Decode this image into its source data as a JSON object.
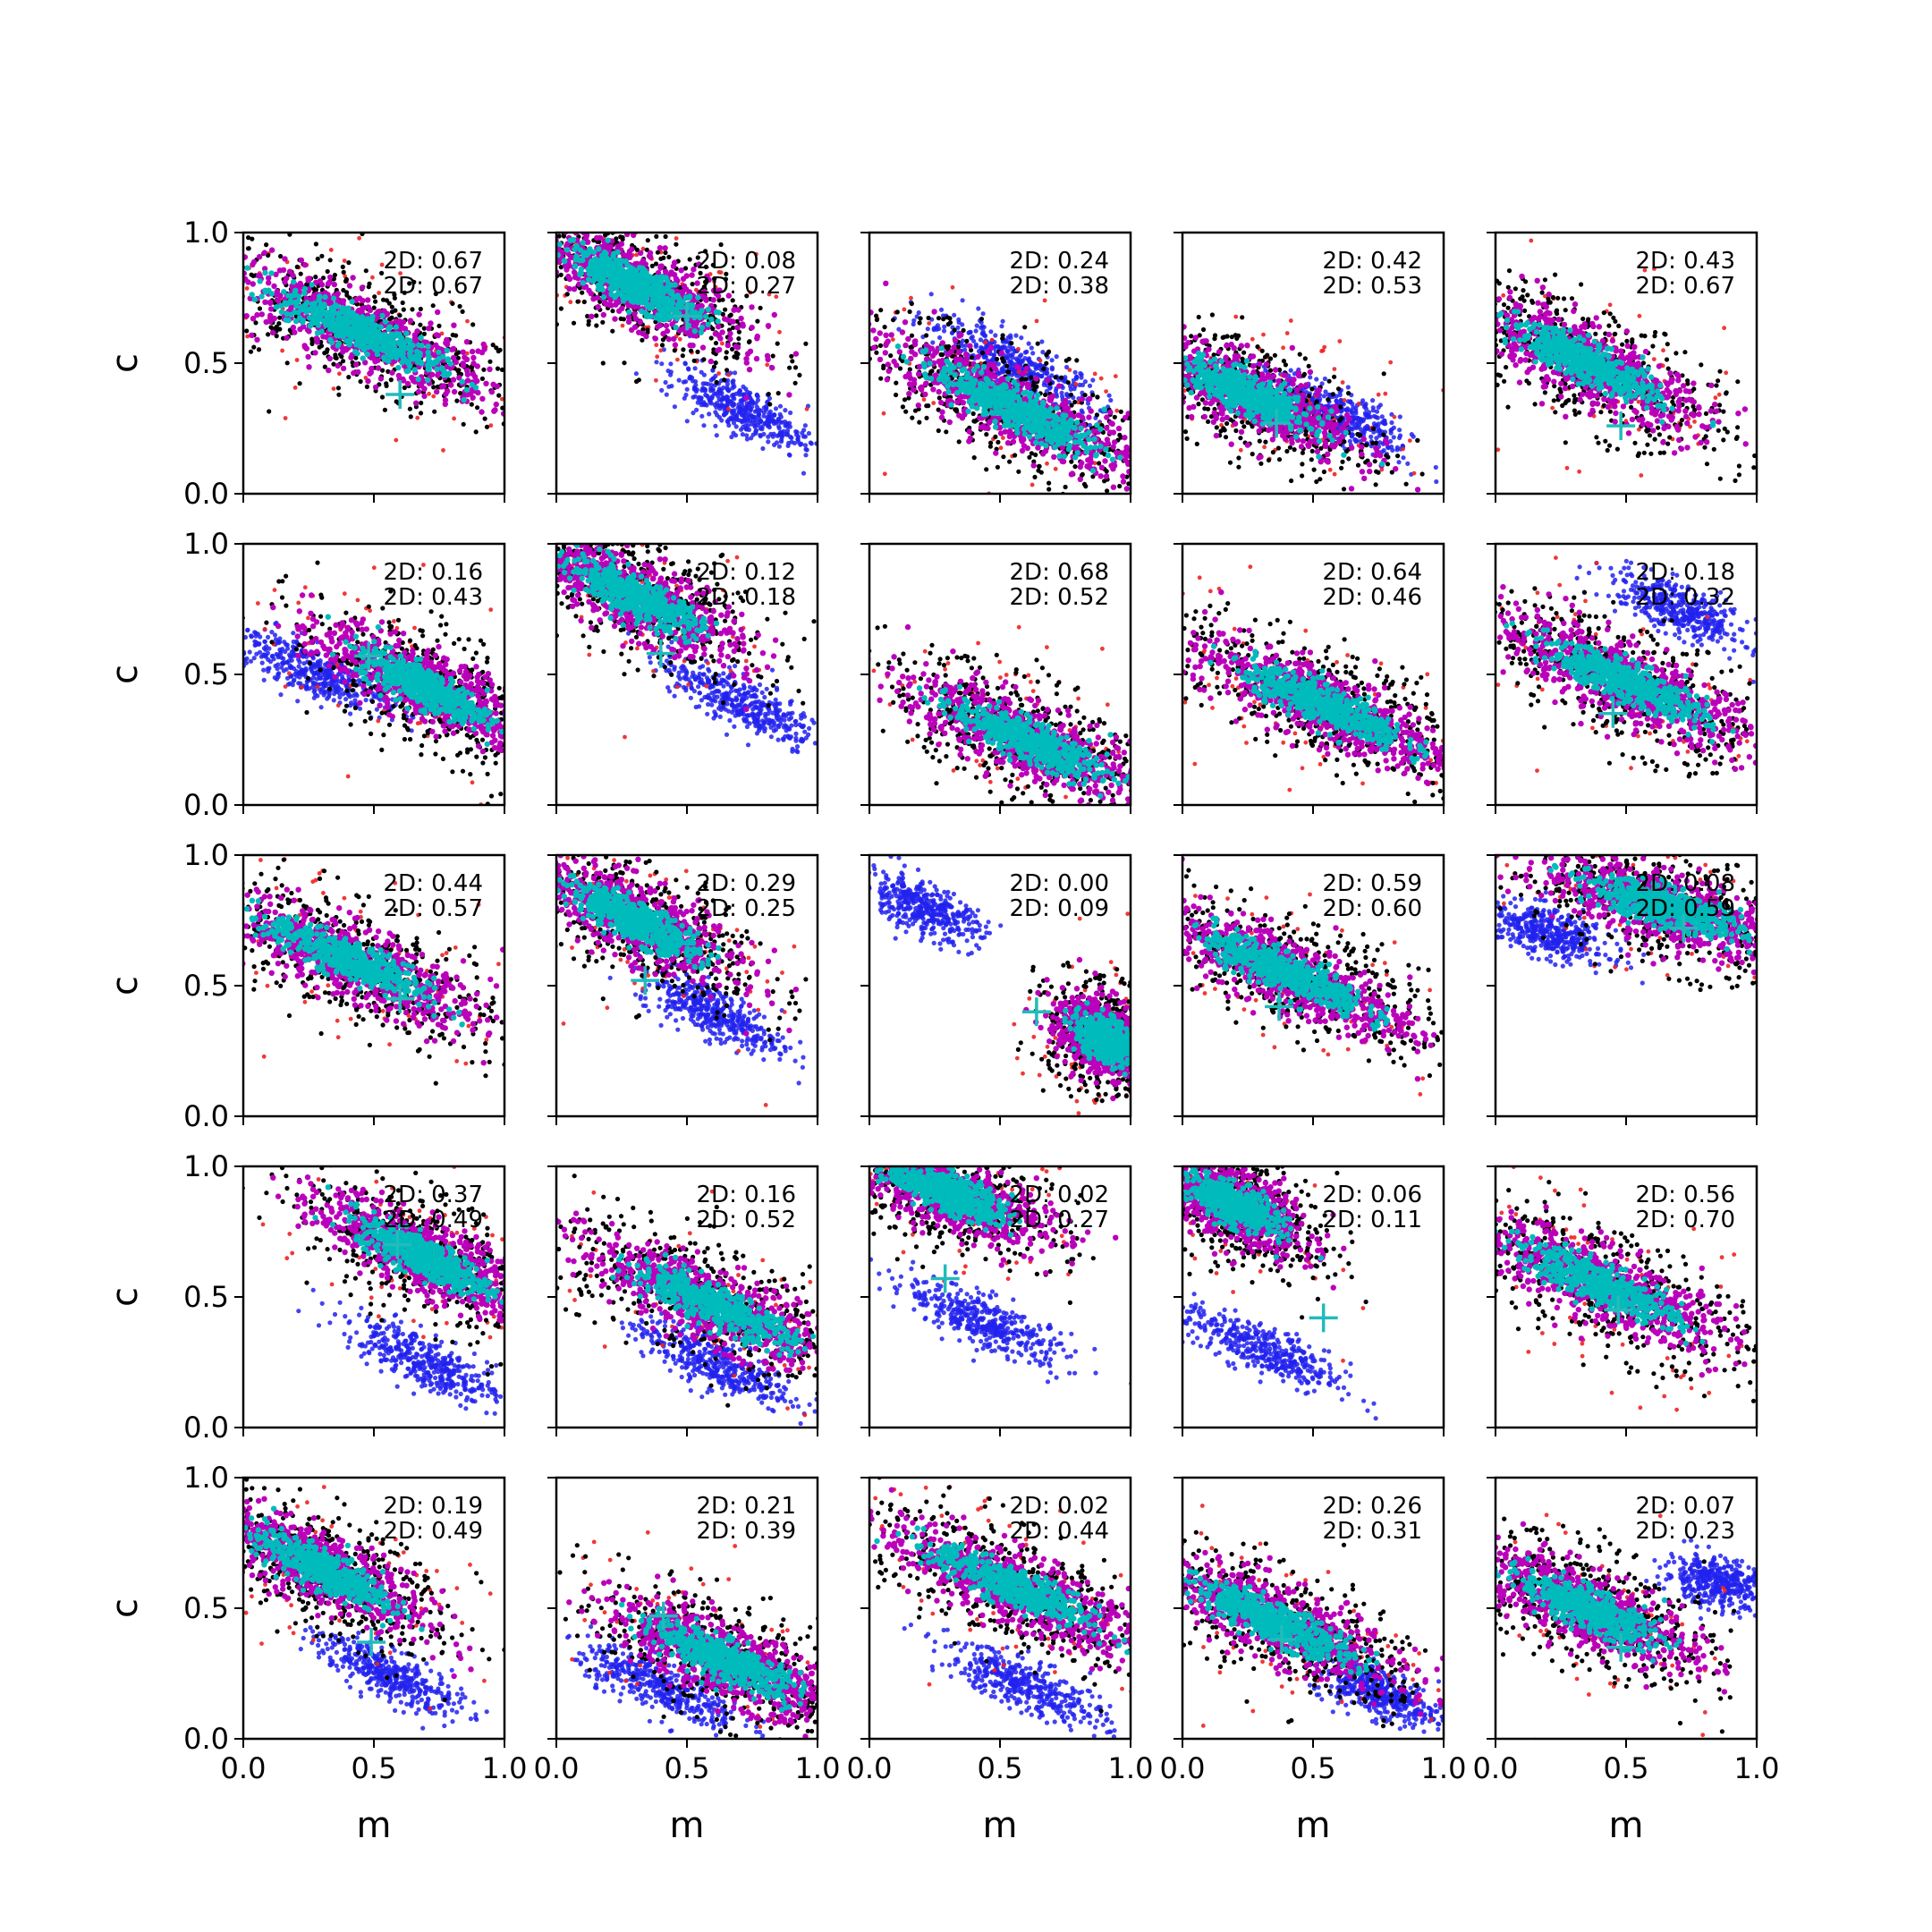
{
  "figure": {
    "xlabel": "m",
    "ylabel": "c",
    "xlim": [
      0,
      1
    ],
    "ylim": [
      0,
      1
    ],
    "xticks": [
      "0.0",
      "0.5",
      "1.0"
    ],
    "yticks": [
      "0.0",
      "0.5",
      "1.0"
    ],
    "annotation_prefix": "2D: "
  },
  "colors": {
    "outer": "#000000",
    "outliers": "#ee2222",
    "alt": "#2222ee",
    "inner": "#bb00bb",
    "core": "#00bbbb",
    "marker": "#22bbbb"
  },
  "chart_data": {
    "type": "scatter",
    "grid": false,
    "rows": 5,
    "cols": 5,
    "panels": [
      {
        "ann": [
          "0.67",
          "0.67"
        ],
        "cross": [
          0.6,
          0.38
        ],
        "cluster": {
          "cx": 0.45,
          "cy": 0.62,
          "slope": -0.45,
          "w": 0.55
        },
        "alt": null
      },
      {
        "ann": [
          "0.08",
          "0.27"
        ],
        "cross": [
          0.5,
          0.68
        ],
        "cluster": {
          "cx": 0.3,
          "cy": 0.8,
          "slope": -0.5,
          "w": 0.45
        },
        "alt": {
          "cx": 0.7,
          "cy": 0.33,
          "slope": -0.5,
          "w": 0.35
        }
      },
      {
        "ann": [
          "0.24",
          "0.38"
        ],
        "cross": null,
        "cluster": {
          "cx": 0.55,
          "cy": 0.33,
          "slope": -0.5,
          "w": 0.55
        },
        "alt": {
          "cx": 0.55,
          "cy": 0.5,
          "slope": -0.5,
          "w": 0.45
        }
      },
      {
        "ann": [
          "0.42",
          "0.53"
        ],
        "cross": [
          0.36,
          0.27
        ],
        "cluster": {
          "cx": 0.25,
          "cy": 0.38,
          "slope": -0.45,
          "w": 0.45
        },
        "alt": {
          "cx": 0.6,
          "cy": 0.3,
          "slope": -0.5,
          "w": 0.35
        }
      },
      {
        "ann": [
          "0.43",
          "0.67"
        ],
        "cross": [
          0.48,
          0.26
        ],
        "cluster": {
          "cx": 0.35,
          "cy": 0.5,
          "slope": -0.5,
          "w": 0.5
        },
        "alt": null
      },
      {
        "ann": [
          "0.16",
          "0.43"
        ],
        "cross": [
          0.48,
          0.57
        ],
        "cluster": {
          "cx": 0.7,
          "cy": 0.45,
          "slope": -0.5,
          "w": 0.45
        },
        "alt": {
          "cx": 0.25,
          "cy": 0.52,
          "slope": -0.45,
          "w": 0.4
        }
      },
      {
        "ann": [
          "0.12",
          "0.18"
        ],
        "cross": [
          0.4,
          0.58
        ],
        "cluster": {
          "cx": 0.3,
          "cy": 0.8,
          "slope": -0.5,
          "w": 0.45
        },
        "alt": {
          "cx": 0.7,
          "cy": 0.4,
          "slope": -0.5,
          "w": 0.4
        }
      },
      {
        "ann": [
          "0.68",
          "0.52"
        ],
        "cross": null,
        "cluster": {
          "cx": 0.6,
          "cy": 0.25,
          "slope": -0.45,
          "w": 0.5
        },
        "alt": null
      },
      {
        "ann": [
          "0.64",
          "0.46"
        ],
        "cross": null,
        "cluster": {
          "cx": 0.55,
          "cy": 0.38,
          "slope": -0.45,
          "w": 0.55
        },
        "alt": null
      },
      {
        "ann": [
          "0.18",
          "0.32"
        ],
        "cross": [
          0.45,
          0.35
        ],
        "cluster": {
          "cx": 0.5,
          "cy": 0.47,
          "slope": -0.45,
          "w": 0.55
        },
        "alt": {
          "cx": 0.7,
          "cy": 0.75,
          "slope": -0.45,
          "w": 0.35
        }
      },
      {
        "ann": [
          "0.44",
          "0.57"
        ],
        "cross": [
          0.6,
          0.45
        ],
        "cluster": {
          "cx": 0.4,
          "cy": 0.6,
          "slope": -0.45,
          "w": 0.55
        },
        "alt": null
      },
      {
        "ann": [
          "0.29",
          "0.25"
        ],
        "cross": [
          0.34,
          0.52
        ],
        "cluster": {
          "cx": 0.3,
          "cy": 0.75,
          "slope": -0.5,
          "w": 0.45
        },
        "alt": {
          "cx": 0.6,
          "cy": 0.4,
          "slope": -0.5,
          "w": 0.35
        }
      },
      {
        "ann": [
          "0.00",
          "0.09"
        ],
        "cross": [
          0.64,
          0.4
        ],
        "cluster": {
          "cx": 0.9,
          "cy": 0.3,
          "slope": -0.6,
          "w": 0.2
        },
        "alt": {
          "cx": 0.2,
          "cy": 0.8,
          "slope": -0.45,
          "w": 0.3
        }
      },
      {
        "ann": [
          "0.59",
          "0.60"
        ],
        "cross": [
          0.37,
          0.42
        ],
        "cluster": {
          "cx": 0.4,
          "cy": 0.55,
          "slope": -0.45,
          "w": 0.55
        },
        "alt": null
      },
      {
        "ann": [
          "0.08",
          "0.59"
        ],
        "cross": [
          0.72,
          0.72
        ],
        "cluster": {
          "cx": 0.65,
          "cy": 0.8,
          "slope": -0.3,
          "w": 0.5
        },
        "alt": {
          "cx": 0.2,
          "cy": 0.7,
          "slope": -0.3,
          "w": 0.3
        }
      },
      {
        "ann": [
          "0.37",
          "0.49"
        ],
        "cross": [
          0.59,
          0.7
        ],
        "cluster": {
          "cx": 0.7,
          "cy": 0.65,
          "slope": -0.5,
          "w": 0.45
        },
        "alt": {
          "cx": 0.7,
          "cy": 0.25,
          "slope": -0.5,
          "w": 0.4
        }
      },
      {
        "ann": [
          "0.16",
          "0.52"
        ],
        "cross": null,
        "cluster": {
          "cx": 0.6,
          "cy": 0.47,
          "slope": -0.45,
          "w": 0.55
        },
        "alt": {
          "cx": 0.6,
          "cy": 0.25,
          "slope": -0.45,
          "w": 0.4
        }
      },
      {
        "ann": [
          "0.02",
          "0.27"
        ],
        "cross": [
          0.29,
          0.57
        ],
        "cluster": {
          "cx": 0.3,
          "cy": 0.9,
          "slope": -0.4,
          "w": 0.4
        },
        "alt": {
          "cx": 0.45,
          "cy": 0.4,
          "slope": -0.45,
          "w": 0.4
        }
      },
      {
        "ann": [
          "0.06",
          "0.11"
        ],
        "cross": [
          0.54,
          0.42
        ],
        "cluster": {
          "cx": 0.2,
          "cy": 0.85,
          "slope": -0.5,
          "w": 0.3
        },
        "alt": {
          "cx": 0.3,
          "cy": 0.3,
          "slope": -0.45,
          "w": 0.4
        }
      },
      {
        "ann": [
          "0.56",
          "0.70"
        ],
        "cross": [
          0.47,
          0.45
        ],
        "cluster": {
          "cx": 0.4,
          "cy": 0.55,
          "slope": -0.45,
          "w": 0.55
        },
        "alt": null
      },
      {
        "ann": [
          "0.19",
          "0.49"
        ],
        "cross": [
          0.49,
          0.37
        ],
        "cluster": {
          "cx": 0.3,
          "cy": 0.65,
          "slope": -0.5,
          "w": 0.45
        },
        "alt": {
          "cx": 0.55,
          "cy": 0.25,
          "slope": -0.5,
          "w": 0.35
        }
      },
      {
        "ann": [
          "0.21",
          "0.39"
        ],
        "cross": [
          0.41,
          0.47
        ],
        "cluster": {
          "cx": 0.65,
          "cy": 0.3,
          "slope": -0.45,
          "w": 0.5
        },
        "alt": {
          "cx": 0.4,
          "cy": 0.2,
          "slope": -0.45,
          "w": 0.4
        }
      },
      {
        "ann": [
          "0.02",
          "0.44"
        ],
        "cross": null,
        "cluster": {
          "cx": 0.55,
          "cy": 0.58,
          "slope": -0.45,
          "w": 0.55
        },
        "alt": {
          "cx": 0.6,
          "cy": 0.2,
          "slope": -0.45,
          "w": 0.4
        }
      },
      {
        "ann": [
          "0.26",
          "0.31"
        ],
        "cross": [
          0.38,
          0.38
        ],
        "cluster": {
          "cx": 0.35,
          "cy": 0.45,
          "slope": -0.45,
          "w": 0.55
        },
        "alt": {
          "cx": 0.75,
          "cy": 0.18,
          "slope": -0.4,
          "w": 0.3
        }
      },
      {
        "ann": [
          "0.07",
          "0.23"
        ],
        "cross": [
          0.48,
          0.35
        ],
        "cluster": {
          "cx": 0.35,
          "cy": 0.5,
          "slope": -0.45,
          "w": 0.45
        },
        "alt": {
          "cx": 0.85,
          "cy": 0.6,
          "slope": -0.2,
          "w": 0.25
        }
      }
    ]
  }
}
